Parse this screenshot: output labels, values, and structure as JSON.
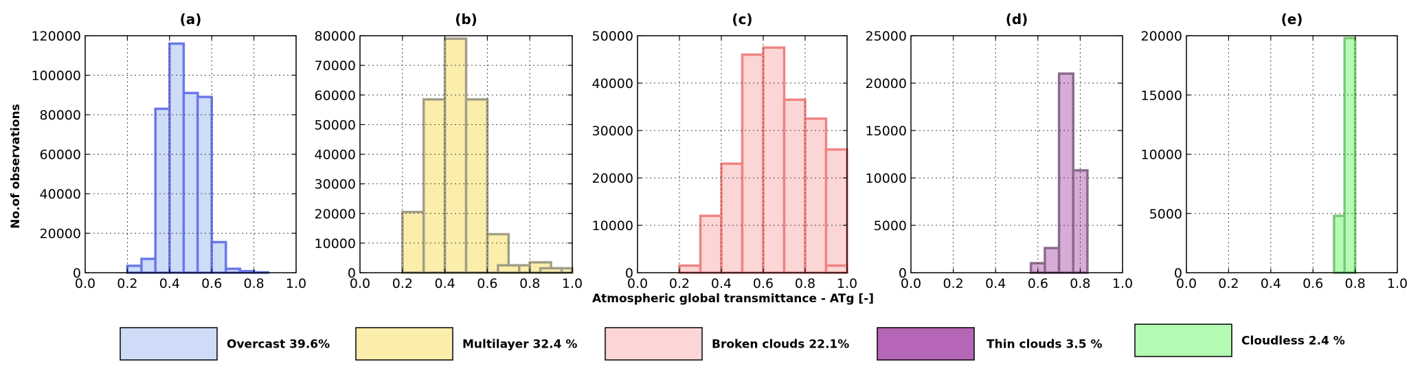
{
  "figure": {
    "xlabel": "Atmospheric global transmittance - ATg [-]",
    "ylabel": "No.of observations"
  },
  "legend": [
    {
      "label": "Overcast 39.6%",
      "fill": "#cfdcf8"
    },
    {
      "label": "Multilayer 32.4 %",
      "fill": "#fbeeab"
    },
    {
      "label": "Broken clouds 22.1%",
      "fill": "#fcd6d6"
    },
    {
      "label": "Thin clouds 3.5 %",
      "fill": "#b666b6"
    },
    {
      "label": "Cloudless 2.4 %",
      "fill": "#b4fcb4"
    }
  ],
  "chart_data": [
    {
      "type": "bar",
      "title": "(a)",
      "series_label": "Overcast 39.6%",
      "fill": "#cfdcf8",
      "edge": "#6a78ea",
      "bin_width": 0.067,
      "xlim": [
        0,
        1
      ],
      "ylim": [
        0,
        120000
      ],
      "xticks": [
        "0.0",
        "0.2",
        "0.4",
        "0.6",
        "0.8",
        "1.0"
      ],
      "yticks": [
        "0",
        "20000",
        "40000",
        "60000",
        "80000",
        "100000",
        "120000"
      ],
      "bin_starts": [
        0.2,
        0.267,
        0.333,
        0.4,
        0.467,
        0.533,
        0.6,
        0.667,
        0.733,
        0.8
      ],
      "values": [
        3500,
        7000,
        83000,
        116000,
        91000,
        89000,
        15500,
        2000,
        800,
        200
      ],
      "grid": true
    },
    {
      "type": "bar",
      "title": "(b)",
      "series_label": "Multilayer 32.4 %",
      "fill": "#fbeeab",
      "edge": "#a39e86",
      "bin_width": 0.1,
      "xlim": [
        0,
        1
      ],
      "ylim": [
        0,
        80000
      ],
      "xticks": [
        "0.0",
        "0.2",
        "0.4",
        "0.6",
        "0.8",
        "1.0"
      ],
      "yticks": [
        "0",
        "10000",
        "20000",
        "30000",
        "40000",
        "50000",
        "60000",
        "70000",
        "80000"
      ],
      "bin_starts": [
        0.2,
        0.3,
        0.4,
        0.5,
        0.6,
        0.7,
        0.8,
        0.9
      ],
      "values": [
        20500,
        58500,
        79000,
        58500,
        13000,
        2500,
        3500,
        1500
      ],
      "extra_bins": [
        {
          "start": 0.65,
          "width": 0.1,
          "value": 2500
        },
        {
          "start": 0.85,
          "width": 0.1,
          "value": 1500
        }
      ],
      "grid": true
    },
    {
      "type": "bar",
      "title": "(c)",
      "series_label": "Broken clouds 22.1%",
      "fill": "#fcd6d6",
      "edge": "#f08484",
      "bin_width": 0.1,
      "xlim": [
        0,
        1
      ],
      "ylim": [
        0,
        50000
      ],
      "xticks": [
        "0.0",
        "0.2",
        "0.4",
        "0.6",
        "0.8",
        "1.0"
      ],
      "yticks": [
        "0",
        "10000",
        "20000",
        "30000",
        "40000",
        "50000"
      ],
      "bin_starts": [
        0.2,
        0.3,
        0.4,
        0.5,
        0.6,
        0.7,
        0.8,
        0.9
      ],
      "values": [
        1500,
        12000,
        23000,
        46000,
        47500,
        36500,
        32500,
        26000
      ],
      "extra_bins": [
        {
          "start": 0.9,
          "width": 0.1,
          "value": 1500
        }
      ],
      "grid": true
    },
    {
      "type": "bar",
      "title": "(d)",
      "series_label": "Thin clouds 3.5 %",
      "fill": "#d7acd7",
      "edge": "#8a6a8a",
      "bin_width": 0.067,
      "xlim": [
        0,
        1
      ],
      "ylim": [
        0,
        25000
      ],
      "xticks": [
        "0.0",
        "0.2",
        "0.4",
        "0.6",
        "0.8",
        "1.0"
      ],
      "yticks": [
        "0",
        "5000",
        "10000",
        "15000",
        "20000",
        "25000"
      ],
      "bin_starts": [
        0.567,
        0.633,
        0.7,
        0.767
      ],
      "values": [
        1000,
        2600,
        21000,
        10800
      ],
      "grid": true
    },
    {
      "type": "bar",
      "title": "(e)",
      "series_label": "Cloudless 2.4 %",
      "fill": "#b4fcb4",
      "edge": "#78c878",
      "bin_width": 0.05,
      "xlim": [
        0,
        1
      ],
      "ylim": [
        0,
        20000
      ],
      "xticks": [
        "0.0",
        "0.2",
        "0.4",
        "0.6",
        "0.8",
        "1.0"
      ],
      "yticks": [
        "0",
        "5000",
        "10000",
        "15000",
        "20000"
      ],
      "bin_starts": [
        0.7,
        0.75
      ],
      "values": [
        4800,
        19800
      ],
      "grid": true
    }
  ]
}
